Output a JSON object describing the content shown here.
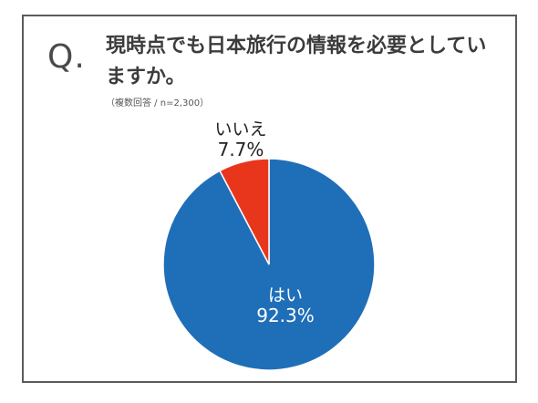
{
  "header": {
    "q_mark": "Q.",
    "question": "現時点でも日本旅行の情報を必要としていますか。",
    "note": "（複数回答 / n=2,300）"
  },
  "colors": {
    "yes": "#1f6fb8",
    "no": "#e8361d",
    "border": "#5b5b5b"
  },
  "chart_data": {
    "type": "pie",
    "title": "",
    "slices": [
      {
        "label": "はい",
        "value": 92.3,
        "value_label": "92.3%"
      },
      {
        "label": "いいえ",
        "value": 7.7,
        "value_label": "7.7%"
      }
    ],
    "start_angle": "12 o'clock",
    "direction": "clockwise",
    "legend": "none"
  }
}
